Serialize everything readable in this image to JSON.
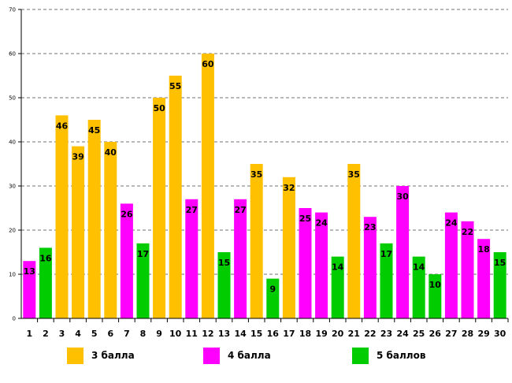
{
  "chart_data": {
    "type": "bar",
    "title": "",
    "xlabel": "",
    "ylabel": "",
    "ylim": [
      0,
      70
    ],
    "yticks": [
      "0",
      "10",
      "20",
      "30",
      "40",
      "50",
      "60",
      "70"
    ],
    "grid": true,
    "categories": [
      "1",
      "2",
      "3",
      "4",
      "5",
      "6",
      "7",
      "8",
      "9",
      "10",
      "11",
      "12",
      "13",
      "14",
      "15",
      "16",
      "17",
      "18",
      "19",
      "20",
      "21",
      "22",
      "23",
      "24",
      "25",
      "26",
      "27",
      "28",
      "29",
      "30"
    ],
    "values": [
      13,
      16,
      46,
      39,
      45,
      40,
      26,
      17,
      50,
      55,
      27,
      60,
      15,
      27,
      35,
      9,
      32,
      25,
      24,
      14,
      35,
      23,
      17,
      30,
      14,
      10,
      24,
      22,
      18,
      15
    ],
    "series_index": [
      1,
      2,
      0,
      0,
      0,
      0,
      1,
      2,
      0,
      0,
      1,
      0,
      2,
      1,
      0,
      2,
      0,
      1,
      1,
      2,
      0,
      1,
      2,
      1,
      2,
      2,
      1,
      1,
      1,
      2
    ],
    "series": [
      {
        "name": "3 балла",
        "color": "#FFC000"
      },
      {
        "name": "4 балла",
        "color": "#FF00FF"
      },
      {
        "name": "5 баллов",
        "color": "#00CC00"
      }
    ],
    "legend_position": "bottom"
  }
}
